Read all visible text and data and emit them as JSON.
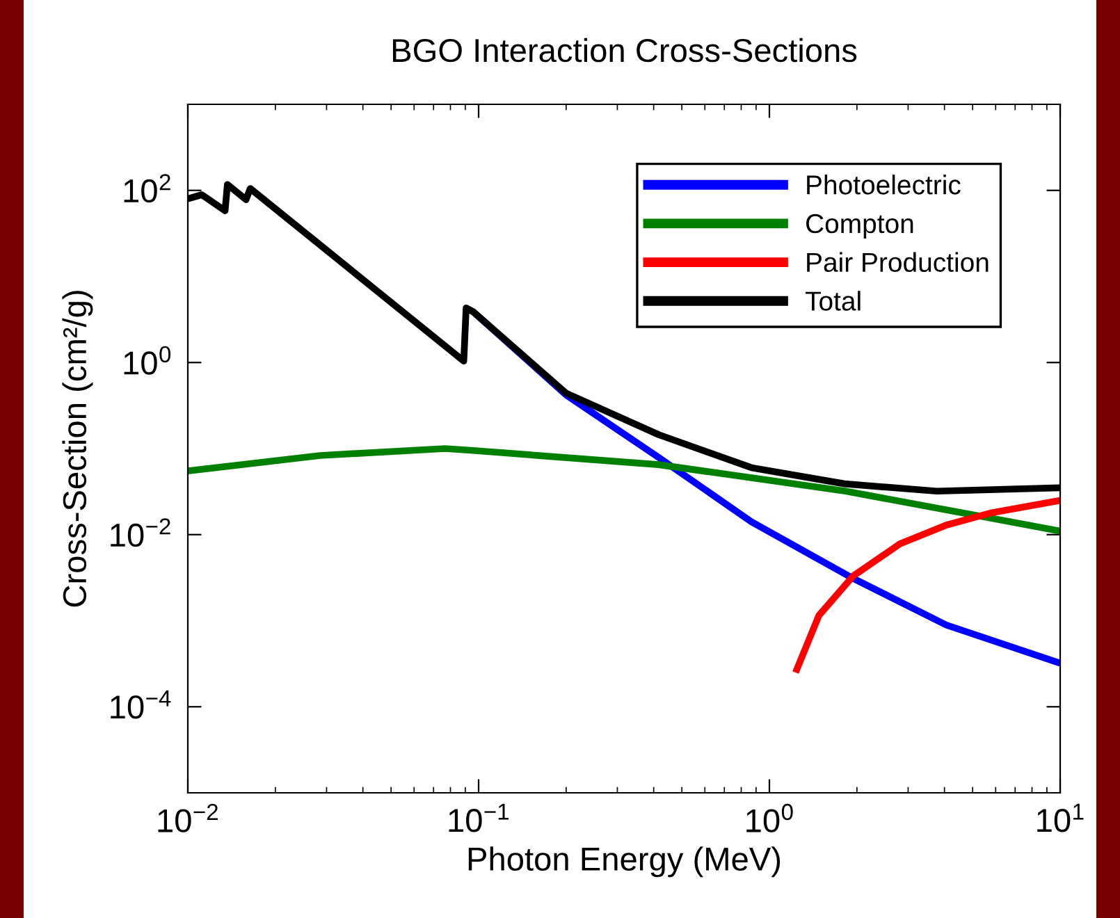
{
  "chart_data": {
    "type": "line",
    "title": "BGO Interaction Cross-Sections",
    "xlabel": "Photon Energy (MeV)",
    "ylabel": "Cross-Section (cm²/g)",
    "log": "xy",
    "xlim": [
      0.01,
      10
    ],
    "ylim": [
      1e-05,
      1000
    ],
    "xticks": [
      {
        "value": 0.01,
        "label": "10$^{−2}$"
      },
      {
        "value": 0.1,
        "label": "10$^{−1}$"
      },
      {
        "value": 1,
        "label": "10$^{0}$"
      },
      {
        "value": 10,
        "label": "10$^{1}$"
      }
    ],
    "yticks": [
      {
        "value": 0.0001,
        "label": "10$^{−4}$"
      },
      {
        "value": 0.01,
        "label": "10$^{−2}$"
      },
      {
        "value": 1,
        "label": "10$^{0}$"
      },
      {
        "value": 100,
        "label": "10$^{2}$"
      }
    ],
    "grid": false,
    "legend": "top right",
    "marker": "none",
    "line_style": "solid",
    "series": [
      {
        "name": "Photoelectric",
        "color": "#0000ff",
        "x": [
          0.0957,
          0.2,
          0.416,
          0.867,
          1.94,
          4.06,
          10
        ],
        "values": [
          3.9,
          0.42,
          0.079,
          0.0141,
          0.0031,
          0.00089,
          0.00032
        ]
      },
      {
        "name": "Compton",
        "color": "#008000",
        "x": [
          0.01,
          0.0285,
          0.0767,
          0.0957,
          0.416,
          1.83,
          5.52,
          10
        ],
        "values": [
          0.055,
          0.083,
          0.1,
          0.095,
          0.065,
          0.032,
          0.016,
          0.011
        ]
      },
      {
        "name": "Pair Production",
        "color": "#ff0000",
        "x": [
          1.23,
          1.48,
          1.94,
          2.81,
          4.06,
          5.83,
          10
        ],
        "values": [
          0.00025,
          0.00115,
          0.0033,
          0.0078,
          0.0129,
          0.018,
          0.025
        ]
      },
      {
        "name": "Total",
        "color": "#000000",
        "x": [
          0.01,
          0.01117,
          0.01343,
          0.01368,
          0.01585,
          0.0164,
          0.0889,
          0.0906,
          0.0957,
          0.2,
          0.416,
          0.867,
          1.81,
          3.77,
          10
        ],
        "values": [
          80,
          89,
          58,
          117,
          78,
          105,
          1.04,
          4.3,
          3.9,
          0.44,
          0.145,
          0.06,
          0.039,
          0.032,
          0.035
        ]
      }
    ]
  }
}
